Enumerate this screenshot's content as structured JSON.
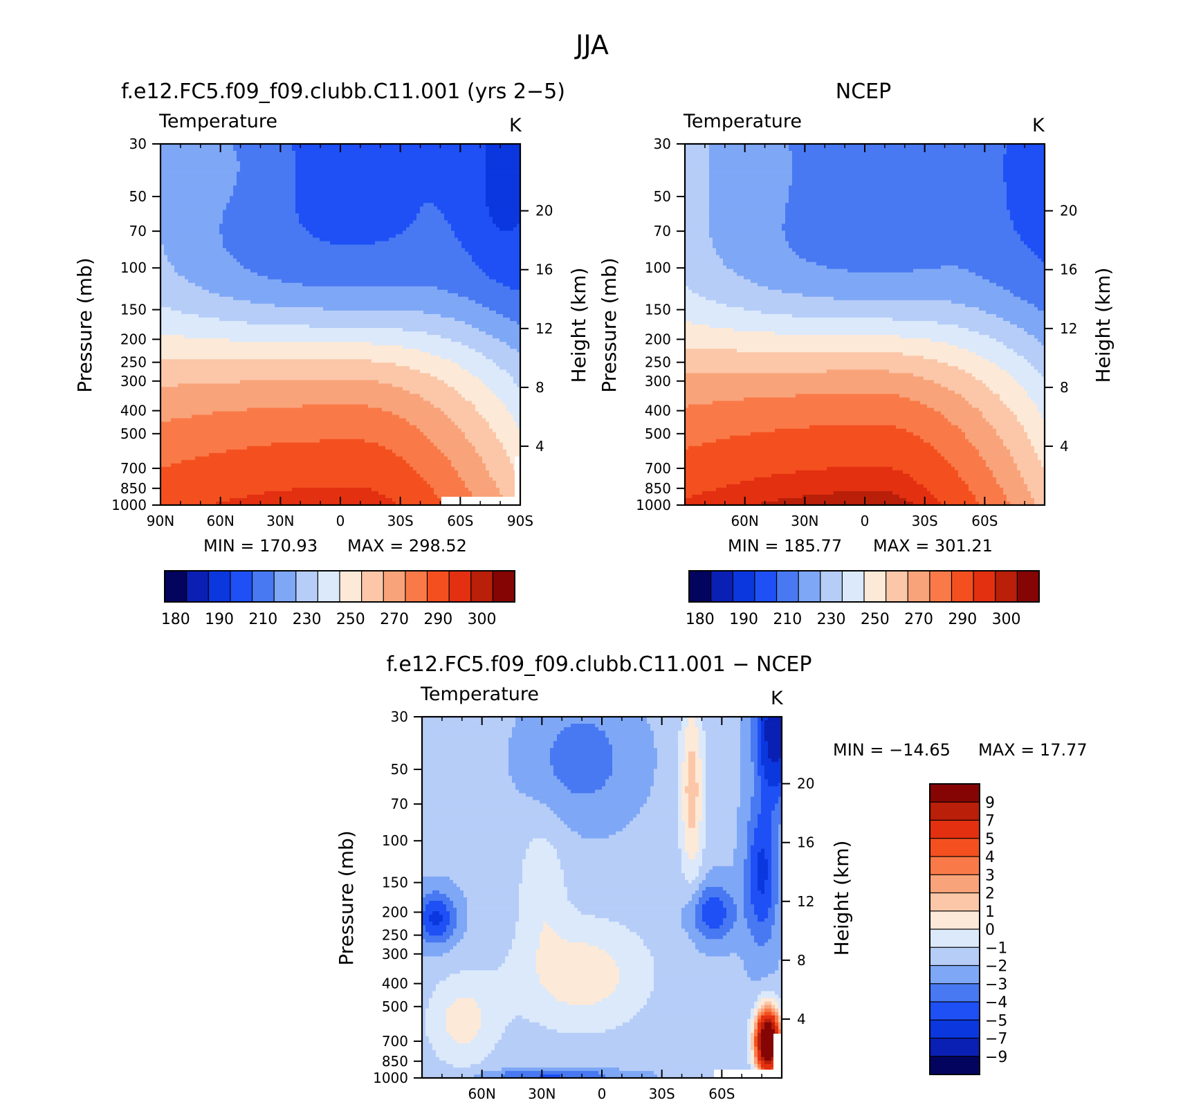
{
  "figure": {
    "season": "JJA",
    "bottom_title": "f.e12.FC5.f09_f09.clubb.C11.001 − NCEP"
  },
  "colors": {
    "abs_palette": [
      "#03045e",
      "#0a1fb3",
      "#0b37df",
      "#1e50f6",
      "#4879f2",
      "#7ea7f6",
      "#b6cdf8",
      "#dbe9fb",
      "#fde9d8",
      "#fbc7a8",
      "#f9a37a",
      "#f97a48",
      "#f4501f",
      "#e33011",
      "#b91f09",
      "#850505"
    ],
    "diff_palette": [
      "#03045e",
      "#0a1fb3",
      "#0b37df",
      "#1e50f6",
      "#4879f2",
      "#7ea7f6",
      "#b6cdf8",
      "#dbe9fb",
      "#fde9d8",
      "#fbc7a8",
      "#f9a37a",
      "#f97a48",
      "#f4501f",
      "#e33011",
      "#b91f09",
      "#850505"
    ]
  },
  "chart_data": [
    {
      "id": "model",
      "type": "heatmap",
      "title": "f.e12.FC5.f09_f09.clubb.C11.001 (yrs 2−5)",
      "variable": "Temperature",
      "units": "K",
      "ylabel": "Pressure (mb)",
      "ylabel_right": "Height (km)",
      "x_ticks": [
        "90N",
        "60N",
        "30N",
        "0",
        "30S",
        "60S",
        "90S"
      ],
      "x_tick_values": [
        90,
        60,
        30,
        0,
        -30,
        -60,
        -90
      ],
      "xlim": [
        90,
        -90
      ],
      "y_ticks": [
        "30",
        "50",
        "70",
        "100",
        "150",
        "200",
        "250",
        "300",
        "400",
        "500",
        "700",
        "850",
        "1000"
      ],
      "y_tick_values": [
        30,
        50,
        70,
        100,
        150,
        200,
        250,
        300,
        400,
        500,
        700,
        850,
        1000
      ],
      "ylim": [
        1000,
        30
      ],
      "height_ticks": [
        "20",
        "16",
        "12",
        "8",
        "4"
      ],
      "height_tick_values": [
        20,
        16,
        12,
        8,
        4
      ],
      "min_label": "MIN = 170.93",
      "max_label": "MAX = 298.52",
      "colorbar": {
        "orientation": "horizontal",
        "labels": [
          "180",
          "190",
          "210",
          "230",
          "250",
          "270",
          "290",
          "300"
        ],
        "levels": [
          180,
          185,
          190,
          200,
          210,
          220,
          230,
          240,
          250,
          260,
          270,
          280,
          290,
          295,
          300
        ]
      },
      "field": {
        "model": "abs",
        "tropo_base": 294,
        "tropo_gradient": 34,
        "strat_cold_min": 196,
        "polar_vortex_min": 178,
        "high_south_offset": -10
      }
    },
    {
      "id": "ncep",
      "type": "heatmap",
      "title": "NCEP",
      "variable": "Temperature",
      "units": "K",
      "ylabel": "Pressure (mb)",
      "ylabel_right": "Height (km)",
      "x_ticks": [
        "60N",
        "30N",
        "0",
        "30S",
        "60S"
      ],
      "x_tick_values": [
        60,
        30,
        0,
        -30,
        -60
      ],
      "xlim": [
        90,
        -90
      ],
      "y_ticks": [
        "30",
        "50",
        "70",
        "100",
        "150",
        "200",
        "250",
        "300",
        "400",
        "500",
        "700",
        "850",
        "1000"
      ],
      "y_tick_values": [
        30,
        50,
        70,
        100,
        150,
        200,
        250,
        300,
        400,
        500,
        700,
        850,
        1000
      ],
      "ylim": [
        1000,
        30
      ],
      "height_ticks": [
        "20",
        "16",
        "12",
        "8",
        "4"
      ],
      "height_tick_values": [
        20,
        16,
        12,
        8,
        4
      ],
      "min_label": "MIN = 185.77",
      "max_label": "MAX = 301.21",
      "colorbar": {
        "orientation": "horizontal",
        "labels": [
          "180",
          "190",
          "210",
          "230",
          "250",
          "270",
          "290",
          "300"
        ],
        "levels": [
          180,
          185,
          190,
          200,
          210,
          220,
          230,
          240,
          250,
          260,
          270,
          280,
          290,
          295,
          300
        ]
      },
      "field": {
        "model": "abs",
        "tropo_base": 298,
        "tropo_gradient": 36,
        "strat_cold_min": 201,
        "polar_vortex_min": 192,
        "high_south_offset": -4
      }
    },
    {
      "id": "diff",
      "type": "heatmap",
      "title": "f.e12.FC5.f09_f09.clubb.C11.001 − NCEP",
      "variable": "Temperature",
      "units": "K",
      "ylabel": "Pressure (mb)",
      "ylabel_right": "Height (km)",
      "x_ticks": [
        "60N",
        "30N",
        "0",
        "30S",
        "60S"
      ],
      "x_tick_values": [
        60,
        30,
        0,
        -30,
        -60
      ],
      "xlim": [
        90,
        -90
      ],
      "y_ticks": [
        "30",
        "50",
        "70",
        "100",
        "150",
        "200",
        "250",
        "300",
        "400",
        "500",
        "700",
        "850",
        "1000"
      ],
      "y_tick_values": [
        30,
        50,
        70,
        100,
        150,
        200,
        250,
        300,
        400,
        500,
        700,
        850,
        1000
      ],
      "ylim": [
        1000,
        30
      ],
      "height_ticks": [
        "20",
        "16",
        "12",
        "8",
        "4"
      ],
      "height_tick_values": [
        20,
        16,
        12,
        8,
        4
      ],
      "min_label": "MIN = −14.65",
      "max_label": "MAX =   17.77",
      "colorbar": {
        "orientation": "vertical",
        "labels": [
          "9",
          "7",
          "5",
          "4",
          "3",
          "2",
          "1",
          "0",
          "−1",
          "−2",
          "−3",
          "−4",
          "−5",
          "−7",
          "−9"
        ],
        "levels": [
          -9,
          -7,
          -5,
          -4,
          -3,
          -2,
          -1,
          0,
          1,
          2,
          3,
          4,
          5,
          7,
          9
        ]
      },
      "field": {
        "model": "diff"
      }
    }
  ]
}
